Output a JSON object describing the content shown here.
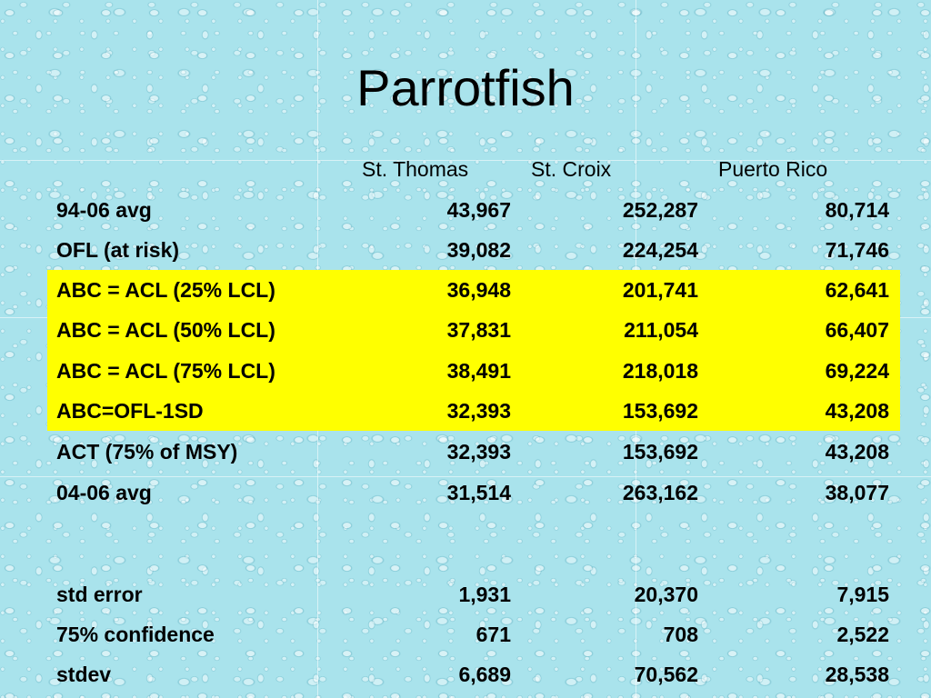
{
  "title": "Parrotfish",
  "highlight_color": "#ffff00",
  "table": {
    "columns": [
      "",
      "St. Thomas",
      "St. Croix",
      "Puerto Rico"
    ],
    "rows": [
      {
        "label": "94-06 avg",
        "st_thomas": "43,967",
        "st_croix": "252,287",
        "puerto_rico": "80,714"
      },
      {
        "label": "OFL (at risk)",
        "st_thomas": "39,082",
        "st_croix": "224,254",
        "puerto_rico": "71,746"
      },
      {
        "label": "ABC = ACL (25% LCL)",
        "st_thomas": "36,948",
        "st_croix": "201,741",
        "puerto_rico": "62,641"
      },
      {
        "label": "ABC = ACL (50% LCL)",
        "st_thomas": "37,831",
        "st_croix": "211,054",
        "puerto_rico": "66,407"
      },
      {
        "label": "ABC = ACL (75% LCL)",
        "st_thomas": "38,491",
        "st_croix": "218,018",
        "puerto_rico": "69,224"
      },
      {
        "label": "ABC=OFL-1SD",
        "st_thomas": "32,393",
        "st_croix": "153,692",
        "puerto_rico": "43,208"
      },
      {
        "label": "ACT (75% of MSY)",
        "st_thomas": "32,393",
        "st_croix": "153,692",
        "puerto_rico": "43,208"
      },
      {
        "label": "04-06 avg",
        "st_thomas": "31,514",
        "st_croix": "263,162",
        "puerto_rico": "38,077"
      },
      {
        "label": "std error",
        "st_thomas": "1,931",
        "st_croix": "20,370",
        "puerto_rico": "7,915"
      },
      {
        "label": "75% confidence",
        "st_thomas": "671",
        "st_croix": "708",
        "puerto_rico": "2,522"
      },
      {
        "label": "stdev",
        "st_thomas": "6,689",
        "st_croix": "70,562",
        "puerto_rico": "28,538"
      }
    ]
  }
}
